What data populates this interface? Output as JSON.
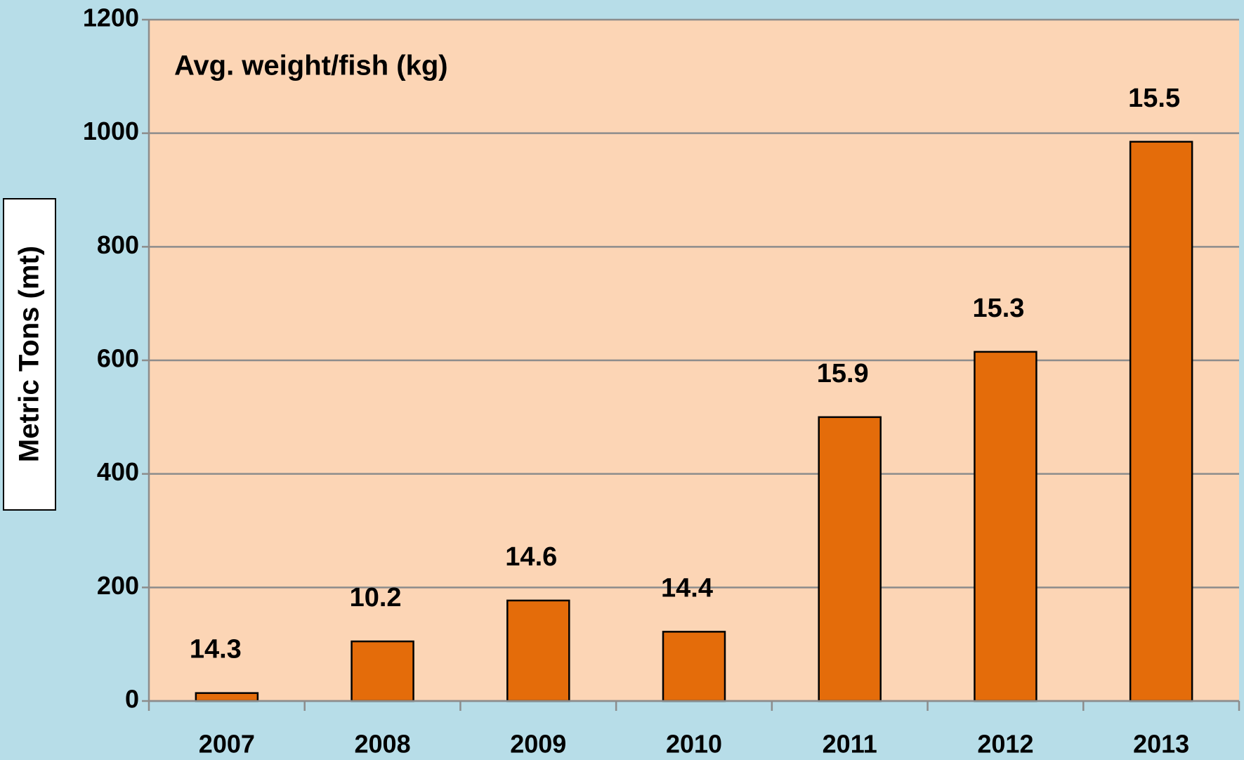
{
  "chart_data": {
    "type": "bar",
    "annotation": "Avg. weight/fish (kg)",
    "y_axis_label": "Metric Tons (mt)",
    "categories": [
      "2007",
      "2008",
      "2009",
      "2010",
      "2011",
      "2012",
      "2013"
    ],
    "values": [
      14,
      105,
      177,
      122,
      500,
      615,
      985
    ],
    "avg_weight_labels": [
      14.3,
      10.2,
      14.6,
      14.4,
      15.9,
      15.3,
      15.5
    ],
    "color": "#e46c0a",
    "ylim": [
      0,
      1200
    ],
    "yticks": [
      0,
      200,
      400,
      600,
      800,
      1000,
      1200
    ],
    "grid": true
  }
}
